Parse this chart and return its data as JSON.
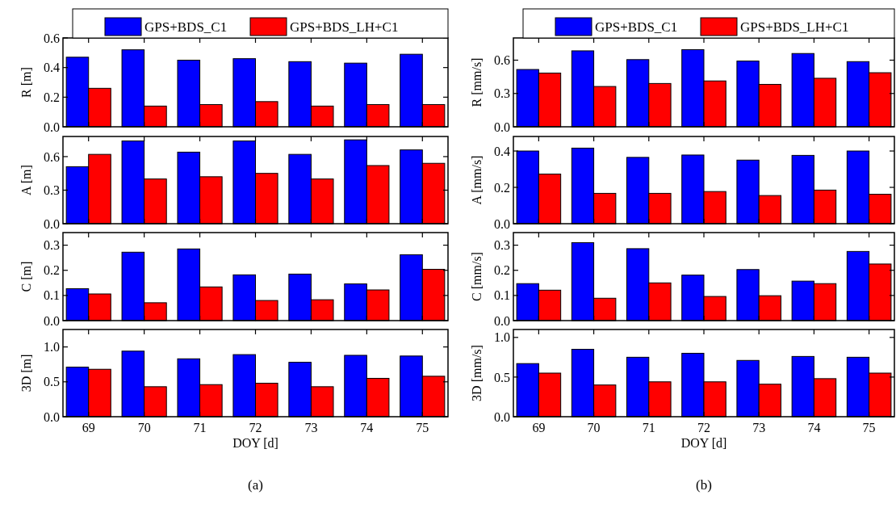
{
  "chart_data": [
    {
      "type": "bar",
      "categories": [
        "69",
        "70",
        "71",
        "72",
        "73",
        "74",
        "75"
      ],
      "ylabel": "R [m]",
      "ylim": [
        0,
        0.6
      ],
      "yticks": [
        {
          "value": 0,
          "label": "0.0"
        },
        {
          "value": 0.2,
          "label": "0.2"
        },
        {
          "value": 0.4,
          "label": "0.4"
        },
        {
          "value": 0.6,
          "label": "0.6"
        }
      ],
      "tick_labels": "y",
      "legend": "top",
      "series": [
        {
          "name": "GPS+BDS_C1",
          "color": "#0000ff",
          "values": [
            0.47,
            0.52,
            0.45,
            0.46,
            0.44,
            0.43,
            0.49
          ]
        },
        {
          "name": "GPS+BDS_LH+C1",
          "color": "#ff0000",
          "values": [
            0.26,
            0.14,
            0.15,
            0.17,
            0.14,
            0.15,
            0.15
          ]
        }
      ]
    },
    {
      "type": "bar",
      "categories": [
        "69",
        "70",
        "71",
        "72",
        "73",
        "74",
        "75"
      ],
      "ylabel": "A [m]",
      "ylim": [
        0,
        0.78
      ],
      "yticks": [
        {
          "value": 0,
          "label": "0.0"
        },
        {
          "value": 0.3,
          "label": "0.3"
        },
        {
          "value": 0.6,
          "label": "0.6"
        }
      ],
      "tick_labels": "y",
      "series": [
        {
          "color": "#0000ff",
          "values": [
            0.51,
            0.74,
            0.64,
            0.74,
            0.62,
            0.75,
            0.66
          ]
        },
        {
          "color": "#ff0000",
          "values": [
            0.62,
            0.4,
            0.42,
            0.45,
            0.4,
            0.52,
            0.54
          ]
        }
      ]
    },
    {
      "type": "bar",
      "categories": [
        "69",
        "70",
        "71",
        "72",
        "73",
        "74",
        "75"
      ],
      "ylabel": "C [m]",
      "ylim": [
        0,
        0.35
      ],
      "yticks": [
        {
          "value": 0,
          "label": "0.0"
        },
        {
          "value": 0.1,
          "label": "0.1"
        },
        {
          "value": 0.2,
          "label": "0.2"
        },
        {
          "value": 0.3,
          "label": "0.3"
        }
      ],
      "tick_labels": "y",
      "series": [
        {
          "color": "#0000ff",
          "values": [
            0.127,
            0.272,
            0.285,
            0.182,
            0.185,
            0.146,
            0.262
          ]
        },
        {
          "color": "#ff0000",
          "values": [
            0.106,
            0.071,
            0.134,
            0.08,
            0.083,
            0.122,
            0.204
          ]
        }
      ]
    },
    {
      "type": "bar",
      "categories": [
        "69",
        "70",
        "71",
        "72",
        "73",
        "74",
        "75"
      ],
      "xlabel": "DOY [d]",
      "ylabel": "3D [m]",
      "ylim": [
        0,
        1.25
      ],
      "yticks": [
        {
          "value": 0,
          "label": "0.0"
        },
        {
          "value": 0.5,
          "label": "0.5"
        },
        {
          "value": 1,
          "label": "1.0"
        }
      ],
      "annotations": [
        "(a)"
      ],
      "series": [
        {
          "color": "#0000ff",
          "values": [
            0.71,
            0.94,
            0.83,
            0.89,
            0.78,
            0.88,
            0.87
          ]
        },
        {
          "color": "#ff0000",
          "values": [
            0.68,
            0.43,
            0.46,
            0.48,
            0.43,
            0.55,
            0.58
          ]
        }
      ]
    },
    {
      "type": "bar",
      "categories": [
        "69",
        "70",
        "71",
        "72",
        "73",
        "74",
        "75"
      ],
      "ylabel": "R [mm/s]",
      "ylim": [
        0,
        0.8
      ],
      "yticks": [
        {
          "value": 0,
          "label": "0.0"
        },
        {
          "value": 0.3,
          "label": "0.3"
        },
        {
          "value": 0.6,
          "label": "0.6"
        }
      ],
      "tick_labels": "y",
      "legend": "top",
      "series": [
        {
          "name": "GPS+BDS_C1",
          "color": "#0000ff",
          "values": [
            0.516,
            0.684,
            0.605,
            0.695,
            0.592,
            0.66,
            0.587
          ]
        },
        {
          "name": "GPS+BDS_LH+C1",
          "color": "#ff0000",
          "values": [
            0.484,
            0.363,
            0.39,
            0.413,
            0.382,
            0.437,
            0.487
          ]
        }
      ]
    },
    {
      "type": "bar",
      "categories": [
        "69",
        "70",
        "71",
        "72",
        "73",
        "74",
        "75"
      ],
      "ylabel": "A [mm/s]",
      "ylim": [
        0,
        0.48
      ],
      "yticks": [
        {
          "value": 0,
          "label": "0.0"
        },
        {
          "value": 0.2,
          "label": "0.2"
        },
        {
          "value": 0.4,
          "label": "0.4"
        }
      ],
      "tick_labels": "y",
      "series": [
        {
          "color": "#0000ff",
          "values": [
            0.4,
            0.416,
            0.365,
            0.378,
            0.35,
            0.376,
            0.4
          ]
        },
        {
          "color": "#ff0000",
          "values": [
            0.273,
            0.167,
            0.167,
            0.177,
            0.155,
            0.185,
            0.162
          ]
        }
      ]
    },
    {
      "type": "bar",
      "categories": [
        "69",
        "70",
        "71",
        "72",
        "73",
        "74",
        "75"
      ],
      "ylabel": "C [mm/s]",
      "ylim": [
        0,
        0.35
      ],
      "yticks": [
        {
          "value": 0,
          "label": "0.0"
        },
        {
          "value": 0.1,
          "label": "0.1"
        },
        {
          "value": 0.2,
          "label": "0.2"
        },
        {
          "value": 0.3,
          "label": "0.3"
        }
      ],
      "tick_labels": "y",
      "series": [
        {
          "color": "#0000ff",
          "values": [
            0.147,
            0.31,
            0.286,
            0.181,
            0.203,
            0.157,
            0.275
          ]
        },
        {
          "color": "#ff0000",
          "values": [
            0.121,
            0.089,
            0.15,
            0.096,
            0.099,
            0.147,
            0.225
          ]
        }
      ]
    },
    {
      "type": "bar",
      "categories": [
        "69",
        "70",
        "71",
        "72",
        "73",
        "74",
        "75"
      ],
      "xlabel": "DOY [d]",
      "ylabel": "3D [mm/s]",
      "ylim": [
        0,
        1.1
      ],
      "yticks": [
        {
          "value": 0,
          "label": "0.0"
        },
        {
          "value": 0.5,
          "label": "0.5"
        },
        {
          "value": 1,
          "label": "1.0"
        }
      ],
      "annotations": [
        "(b)"
      ],
      "series": [
        {
          "color": "#0000ff",
          "values": [
            0.67,
            0.85,
            0.75,
            0.8,
            0.71,
            0.76,
            0.75
          ]
        },
        {
          "color": "#ff0000",
          "values": [
            0.55,
            0.4,
            0.44,
            0.44,
            0.41,
            0.48,
            0.55
          ]
        }
      ]
    }
  ]
}
